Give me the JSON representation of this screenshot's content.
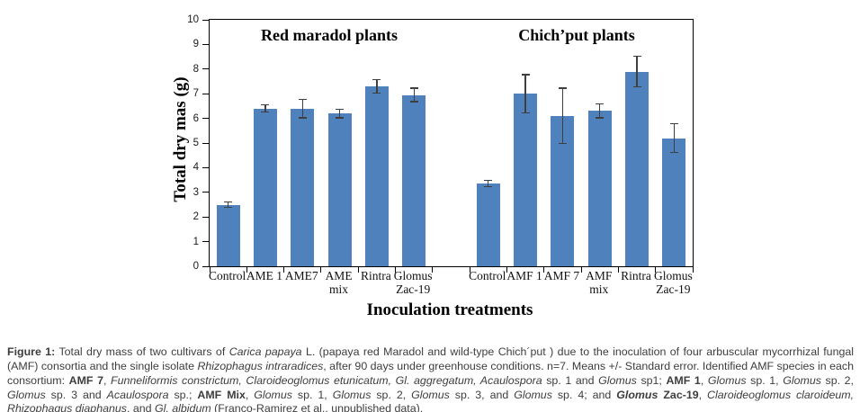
{
  "chart_data": {
    "type": "bar",
    "ylabel": "Total dry mas (g)",
    "xlabel": "Inoculation treatments",
    "ylim": [
      0,
      10
    ],
    "yticks": [
      0,
      1,
      2,
      3,
      4,
      5,
      6,
      7,
      8,
      9,
      10
    ],
    "grid": "off",
    "legend": "none",
    "bar_color": "#4f81bd",
    "error_bar_color": "#3f3f3f",
    "axis_color": "#000000",
    "groups": [
      {
        "name": "Red maradol plants",
        "categories": [
          [
            "Control"
          ],
          [
            "AME 1"
          ],
          [
            "AME7"
          ],
          [
            "AME",
            "mix"
          ],
          [
            "Rintra"
          ],
          [
            "Glomus",
            "Zac-19"
          ]
        ],
        "values": [
          2.5,
          6.4,
          6.4,
          6.2,
          7.3,
          6.95
        ],
        "errors": [
          0.13,
          0.17,
          0.4,
          0.2,
          0.3,
          0.3
        ]
      },
      {
        "name": "Chich’put plants",
        "categories": [
          [
            "Control"
          ],
          [
            "AMF 1"
          ],
          [
            "AMF 7"
          ],
          [
            "AMF",
            "mix"
          ],
          [
            "Rintra"
          ],
          [
            "Glomus",
            "Zac-19"
          ]
        ],
        "values": [
          3.35,
          7.0,
          6.1,
          6.3,
          7.9,
          5.2
        ],
        "errors": [
          0.15,
          0.8,
          1.15,
          0.3,
          0.65,
          0.6
        ]
      }
    ]
  },
  "figure": {
    "caption_segments": [
      {
        "text": "Figure 1:",
        "bold": true
      },
      {
        "text": " Total dry mass of two cultivars of "
      },
      {
        "text": "Carica papaya",
        "italic": true
      },
      {
        "text": " L. (papaya red Maradol and wild-type Chich´put ) due to the inoculation of four arbuscular mycorrhizal fungal (AMF) consortia and the single isolate "
      },
      {
        "text": "Rhizophagus intraradices",
        "italic": true
      },
      {
        "text": ", after 90 days under greenhouse conditions. n=7. Means +/- Standard error. Identified AMF species in each consortium: "
      },
      {
        "text": "AMF 7",
        "bold": true
      },
      {
        "text": ", "
      },
      {
        "text": "Funneliformis constrictum, Claroideoglomus etunicatum, Gl. aggregatum, Acaulospora",
        "italic": true
      },
      {
        "text": " sp. 1 and "
      },
      {
        "text": "Glomus",
        "italic": true
      },
      {
        "text": " sp1; "
      },
      {
        "text": "AMF 1",
        "bold": true
      },
      {
        "text": ", "
      },
      {
        "text": "Glomus",
        "italic": true
      },
      {
        "text": " sp. 1, "
      },
      {
        "text": "Glomus",
        "italic": true
      },
      {
        "text": " sp. 2, "
      },
      {
        "text": "Glomus",
        "italic": true
      },
      {
        "text": " sp. 3 and "
      },
      {
        "text": "Acaulospora",
        "italic": true
      },
      {
        "text": " sp.; "
      },
      {
        "text": "AMF Mix",
        "bold": true
      },
      {
        "text": ", "
      },
      {
        "text": "Glomus",
        "italic": true
      },
      {
        "text": " sp. 1, "
      },
      {
        "text": "Glomus",
        "italic": true
      },
      {
        "text": " sp. 2,  "
      },
      {
        "text": "Glomus",
        "italic": true
      },
      {
        "text": " sp. 3, and "
      },
      {
        "text": "Glomus",
        "italic": true
      },
      {
        "text": " sp. 4; and "
      },
      {
        "text": "Glomus",
        "bold": true,
        "italic": true
      },
      {
        "text": " Zac-19",
        "bold": true
      },
      {
        "text": ", "
      },
      {
        "text": "Claroideoglomus claroideum,",
        "italic": true
      },
      {
        "text": " "
      },
      {
        "text": "Rhizophagus diaphanus",
        "italic": true
      },
      {
        "text": ", and "
      },
      {
        "text": "Gl. albidum",
        "italic": true
      },
      {
        "text": " (Franco-Ramirez et al., unpublished data)."
      }
    ]
  }
}
